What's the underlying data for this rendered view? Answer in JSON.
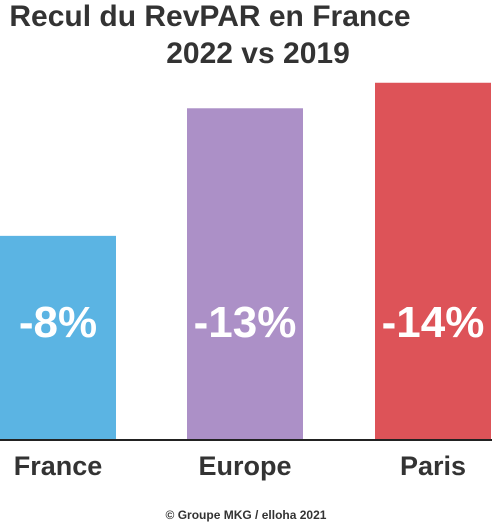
{
  "chart_data": {
    "type": "bar",
    "title_lines": [
      "Recul du RevPAR en France",
      "2022 vs 2019"
    ],
    "categories": [
      "France",
      "Europe",
      "Paris"
    ],
    "values": [
      -8,
      -13,
      -14
    ],
    "value_labels": [
      "-8%",
      "-13%",
      "-14%"
    ],
    "bar_colors": [
      "#5bb4e3",
      "#ac90c7",
      "#dd5358"
    ],
    "ylim": [
      0,
      -14.5
    ],
    "grid": false,
    "legend": "none",
    "source": "© Groupe MKG / elloha 2021"
  }
}
